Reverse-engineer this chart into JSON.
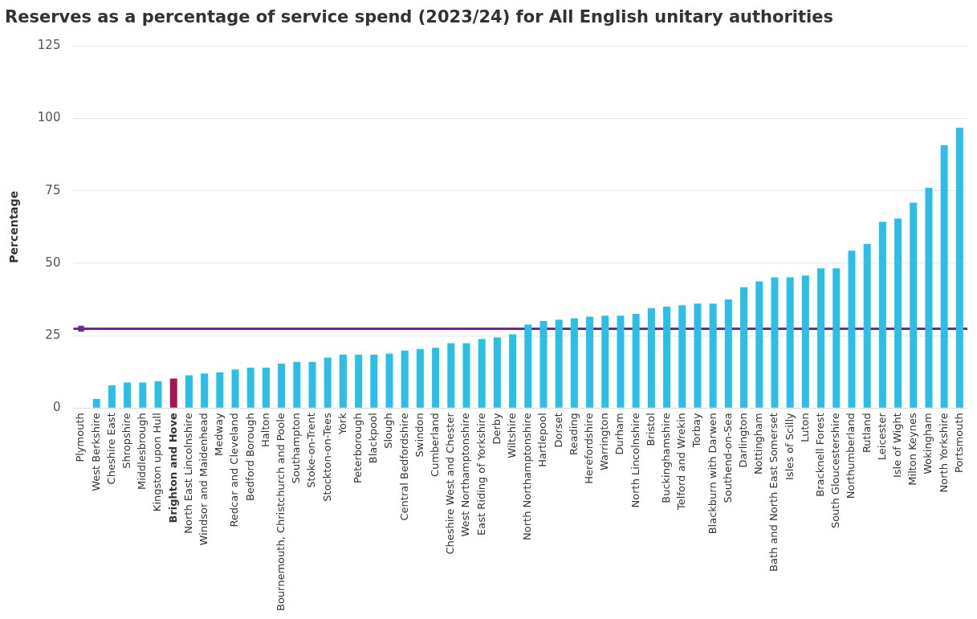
{
  "chart_data": {
    "type": "bar",
    "title": "Reserves as a percentage of service spend (2023/24) for All English unitary authorities",
    "ylabel": "Percentage",
    "categories": [
      "Plymouth",
      "West Berkshire",
      "Cheshire East",
      "Shropshire",
      "Middlesbrough",
      "Kingston upon Hull",
      "Brighton and Hove",
      "North East Lincolnshire",
      "Windsor and Maidenhead",
      "Medway",
      "Redcar and Cleveland",
      "Bedford Borough",
      "Halton",
      "Bournemouth, Christchurch and Poole",
      "Southampton",
      "Stoke-on-Trent",
      "Stockton-on-Tees",
      "York",
      "Peterborough",
      "Blackpool",
      "Slough",
      "Central Bedfordshire",
      "Swindon",
      "Cumberland",
      "Cheshire West and Chester",
      "West Northamptonshire",
      "East Riding of Yorkshire",
      "Derby",
      "Wiltshire",
      "North Northamptonshire",
      "Hartlepool",
      "Dorset",
      "Reading",
      "Herefordshire",
      "Warrington",
      "Durham",
      "North Lincolnshire",
      "Bristol",
      "Buckinghamshire",
      "Telford and Wrekin",
      "Torbay",
      "Blackburn with Darwen",
      "Southend-on-Sea",
      "Darlington",
      "Nottingham",
      "Bath and North East Somerset",
      "Isles of Scilly",
      "Luton",
      "Bracknell Forest",
      "South Gloucestershire",
      "Northumberland",
      "Rutland",
      "Leicester",
      "Isle of Wight",
      "Milton Keynes",
      "Wokingham",
      "North Yorkshire",
      "Portsmouth"
    ],
    "series": [
      {
        "values": [
          0,
          3.1,
          7.8,
          8.8,
          8.8,
          9.2,
          10.2,
          11.3,
          11.9,
          12.3,
          13.3,
          13.9,
          13.9,
          15.3,
          15.9,
          15.9,
          17.4,
          18.4,
          18.4,
          18.4,
          18.8,
          19.8,
          20.4,
          20.8,
          22.4,
          22.4,
          23.8,
          24.4,
          25.4,
          28.8,
          30.0,
          30.5,
          31.0,
          31.5,
          31.9,
          31.9,
          32.5,
          34.5,
          35.0,
          35.5,
          36.0,
          36.0,
          37.5,
          41.7,
          43.7,
          45.1,
          45.1,
          45.7,
          48.2,
          48.2,
          54.3,
          56.7,
          64.3,
          65.4,
          70.9,
          76.0,
          90.7,
          96.7
        ],
        "colors": [
          "#2bbfe8",
          "#2bbfe8",
          "#2bbfe8",
          "#2bbfe8",
          "#2bbfe8",
          "#2bbfe8",
          "#a6174f",
          "#2bbfe8",
          "#2bbfe8",
          "#2bbfe8",
          "#2bbfe8",
          "#2bbfe8",
          "#2bbfe8",
          "#2bbfe8",
          "#2bbfe8",
          "#2bbfe8",
          "#2bbfe8",
          "#2bbfe8",
          "#2bbfe8",
          "#2bbfe8",
          "#2bbfe8",
          "#2bbfe8",
          "#2bbfe8",
          "#2bbfe8",
          "#2bbfe8",
          "#2bbfe8",
          "#2bbfe8",
          "#2bbfe8",
          "#2bbfe8",
          "#2bbfe8",
          "#2bbfe8",
          "#2bbfe8",
          "#2bbfe8",
          "#2bbfe8",
          "#2bbfe8",
          "#2bbfe8",
          "#2bbfe8",
          "#2bbfe8",
          "#2bbfe8",
          "#2bbfe8",
          "#2bbfe8",
          "#2bbfe8",
          "#2bbfe8",
          "#2bbfe8",
          "#2bbfe8",
          "#2bbfe8",
          "#2bbfe8",
          "#2bbfe8",
          "#2bbfe8",
          "#2bbfe8",
          "#2bbfe8",
          "#2bbfe8",
          "#2bbfe8",
          "#2bbfe8",
          "#2bbfe8",
          "#2bbfe8",
          "#2bbfe8",
          "#2bbfe8"
        ]
      },
      {
        "type": "scatter",
        "x": [
          "Plymouth"
        ],
        "values": [
          27.4
        ],
        "color": "#6b2c8e",
        "marker": "square"
      }
    ],
    "ylim": [
      0,
      125
    ],
    "yticks": [
      0,
      25,
      50,
      75,
      100,
      125
    ],
    "grid": "y",
    "legend": false,
    "ref_lines": [
      {
        "axis": "y",
        "value": 27.4,
        "color": "#6b2c8e"
      }
    ]
  }
}
